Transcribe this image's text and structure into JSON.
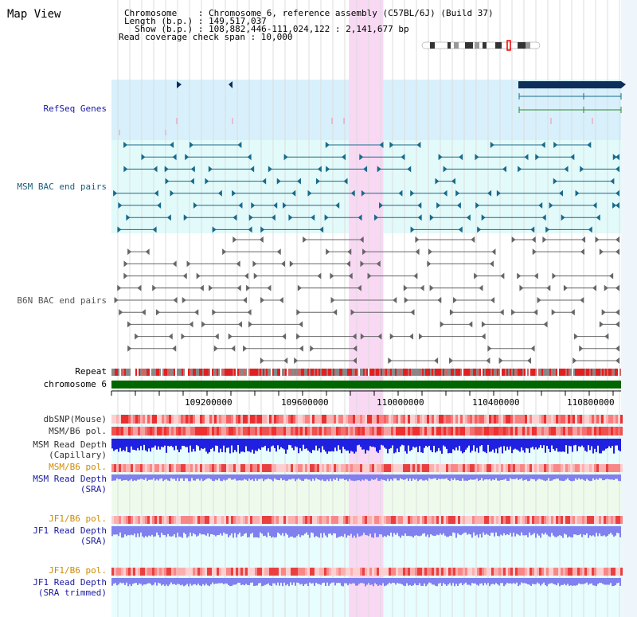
{
  "header": {
    "view_title": "Map View",
    "info_lines": [
      "Chromosome    : Chromosome 6, reference assembly (C57BL/6J) (Build 37)",
      "Length (b.p.) : 149,517,037",
      "  Show (b.p.) : 108,882,446-111,024,122 : 2,141,677 bp",
      "Read coverage check span : 10,000"
    ]
  },
  "view": {
    "start": 108882446,
    "end": 111024122
  },
  "highlight": {
    "start": 109880000,
    "end": 110025000
  },
  "tracks": {
    "refseq": "RefSeq Genes",
    "msm_bac": "MSM BAC end pairs",
    "b6n_bac": "B6N BAC end pairs",
    "repeat": "Repeat",
    "chromosome": "chromosome 6"
  },
  "axis": {
    "ticks": [
      "109200000",
      "109600000",
      "110000000",
      "110400000",
      "110800000"
    ]
  },
  "lower_tracks": [
    {
      "key": "dbsnp",
      "lines": [
        "dbSNP(Mouse)"
      ],
      "color": "#333333"
    },
    {
      "key": "msm_pol",
      "lines": [
        "MSM/B6 pol."
      ],
      "color": "#333333"
    },
    {
      "key": "msm_cap",
      "lines": [
        "MSM Read Depth",
        "(Capillary)"
      ],
      "color": "#333333"
    },
    {
      "key": "msm_pol_sra",
      "lines": [
        "MSM/B6 pol."
      ],
      "color": "#d08a00"
    },
    {
      "key": "msm_sra",
      "lines": [
        "MSM Read Depth",
        "(SRA)"
      ],
      "color": "#1a1aa0"
    },
    {
      "key": "jf1_pol",
      "lines": [
        "JF1/B6 pol."
      ],
      "color": "#d08a00"
    },
    {
      "key": "jf1_sra",
      "lines": [
        "JF1 Read Depth",
        "(SRA)"
      ],
      "color": "#1a1aa0"
    },
    {
      "key": "jf1_pol_t",
      "lines": [
        "JF1/B6 pol."
      ],
      "color": "#d08a00"
    },
    {
      "key": "jf1_sra_t",
      "lines": [
        "JF1 Read Depth",
        "(SRA trimmed)"
      ],
      "color": "#1a1aa0"
    }
  ],
  "colors": {
    "refseq_bg": "#d8f0fb",
    "msm_bg": "#e2fafa",
    "highlight": "#f9d8f4",
    "msm_line": "#1a6a8a",
    "b6n_line": "#666666",
    "chromosome": "#006600",
    "depth_dark": "#2020e0",
    "depth_light": "#8080ee",
    "snp": "#ee4040"
  }
}
